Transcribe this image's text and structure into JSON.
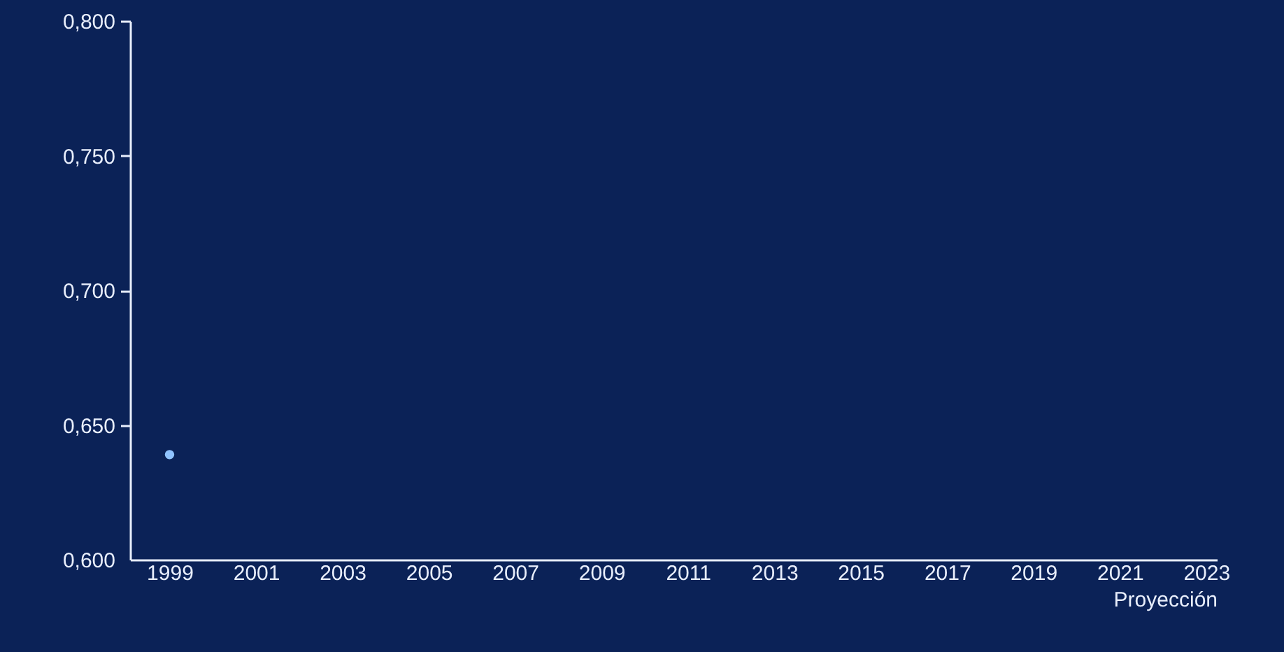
{
  "chart_data": {
    "type": "scatter",
    "x": [
      "1999"
    ],
    "series": [
      {
        "color": "#8fc3ff",
        "values": [
          0.639
        ]
      }
    ],
    "xlabel": "Proyección",
    "xlim": [
      "1998-02",
      "2023-04"
    ],
    "xticks": [
      "1999",
      "2001",
      "2003",
      "2005",
      "2007",
      "2009",
      "2011",
      "2013",
      "2015",
      "2017",
      "2019",
      "2021",
      "2023"
    ],
    "ylim": [
      0.6,
      0.8
    ],
    "yticks": [
      {
        "value": 0.6,
        "label": "0,600"
      },
      {
        "value": 0.65,
        "label": "0,650"
      },
      {
        "value": 0.7,
        "label": "0,700"
      },
      {
        "value": 0.75,
        "label": "0,750"
      },
      {
        "value": 0.8,
        "label": "0,800"
      }
    ],
    "marker": "circle",
    "grid": false
  }
}
